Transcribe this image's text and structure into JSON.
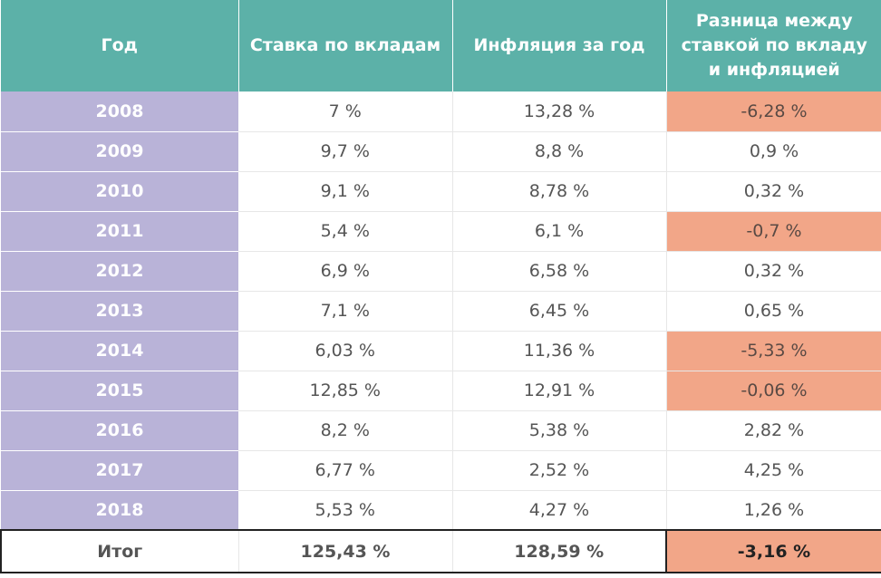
{
  "table": {
    "headers": [
      "Год",
      "Ставка по вкладам",
      "Инфляция за год",
      "Разница между ставкой по вкладу и инфляцией"
    ],
    "rows": [
      {
        "year": "2008",
        "rate": "7 %",
        "inflation": "13,28 %",
        "diff": "-6,28 %",
        "negative": true
      },
      {
        "year": "2009",
        "rate": "9,7 %",
        "inflation": "8,8 %",
        "diff": "0,9 %",
        "negative": false
      },
      {
        "year": "2010",
        "rate": "9,1 %",
        "inflation": "8,78 %",
        "diff": "0,32 %",
        "negative": false
      },
      {
        "year": "2011",
        "rate": "5,4 %",
        "inflation": "6,1 %",
        "diff": "-0,7 %",
        "negative": true
      },
      {
        "year": "2012",
        "rate": "6,9 %",
        "inflation": "6,58 %",
        "diff": "0,32 %",
        "negative": false
      },
      {
        "year": "2013",
        "rate": "7,1 %",
        "inflation": "6,45 %",
        "diff": "0,65 %",
        "negative": false
      },
      {
        "year": "2014",
        "rate": "6,03 %",
        "inflation": "11,36 %",
        "diff": "-5,33 %",
        "negative": true
      },
      {
        "year": "2015",
        "rate": "12,85 %",
        "inflation": "12,91 %",
        "diff": "-0,06 %",
        "negative": true
      },
      {
        "year": "2016",
        "rate": "8,2 %",
        "inflation": "5,38 %",
        "diff": "2,82 %",
        "negative": false
      },
      {
        "year": "2017",
        "rate": "6,77 %",
        "inflation": "2,52 %",
        "diff": "4,25 %",
        "negative": false
      },
      {
        "year": "2018",
        "rate": "5,53 %",
        "inflation": "4,27 %",
        "diff": "1,26 %",
        "negative": false
      }
    ],
    "total": {
      "label": "Итог",
      "rate": "125,43 %",
      "inflation": "128,59 %",
      "diff": "-3,16 %"
    }
  },
  "colors": {
    "header_bg": "#5cb1a8",
    "year_bg": "#b9b3d8",
    "negative_bg": "#f2a688",
    "text": "#555555"
  }
}
